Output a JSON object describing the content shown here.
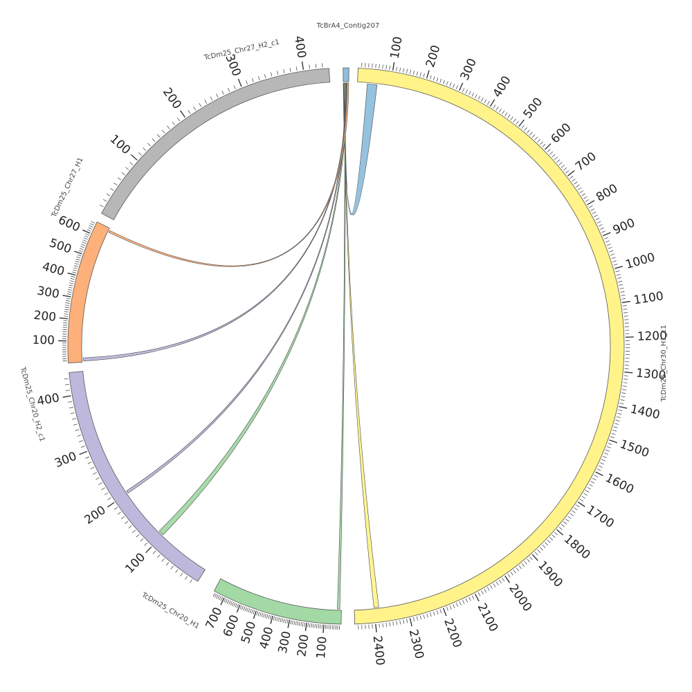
{
  "chart_data": {
    "type": "chord",
    "segments": [
      {
        "id": "contig207",
        "name": "TcBrA4_Contig207",
        "length": 10,
        "color": "#8fbfdc",
        "major_ticks": []
      },
      {
        "id": "chr30h1",
        "name": "TcDm25_Chr30_H1_c1",
        "length": 2460,
        "color": "#fff38a",
        "major_ticks": [
          100,
          200,
          300,
          400,
          500,
          600,
          700,
          800,
          900,
          1000,
          1100,
          1200,
          1300,
          1400,
          1500,
          1600,
          1700,
          1800,
          1900,
          2000,
          2100,
          2200,
          2300,
          2400
        ]
      },
      {
        "id": "chr20h1",
        "name": "TcDm25_Chr20_H1",
        "length": 770,
        "color": "#a3d9a5",
        "major_ticks": [
          100,
          200,
          300,
          400,
          500,
          600,
          700
        ]
      },
      {
        "id": "chr20h2",
        "name": "TcDm25_Chr20_H2_c1",
        "length": 440,
        "color": "#bdb8dc",
        "major_ticks": [
          100,
          200,
          300,
          400
        ]
      },
      {
        "id": "chr27h1",
        "name": "TcDm25_Chr27_H1",
        "length": 660,
        "color": "#fdb07a",
        "major_ticks": [
          100,
          200,
          300,
          400,
          500,
          600
        ]
      },
      {
        "id": "chr27h2",
        "name": "TcDm25_Chr27_H2_c1",
        "length": 440,
        "color": "#b7b7b7",
        "major_ticks": [
          100,
          200,
          300,
          400
        ]
      }
    ],
    "links": [
      {
        "from": {
          "seg": "contig207",
          "start": 0,
          "end": 3
        },
        "to": {
          "seg": "chr30h1",
          "start": 30,
          "end": 60
        },
        "color": "#8fbfdc"
      },
      {
        "from": {
          "seg": "contig207",
          "start": 1,
          "end": 2
        },
        "to": {
          "seg": "chr30h1",
          "start": 2385,
          "end": 2400
        },
        "color": "#fff38a"
      },
      {
        "from": {
          "seg": "contig207",
          "start": 2,
          "end": 4
        },
        "to": {
          "seg": "chr20h1",
          "start": 10,
          "end": 25
        },
        "color": "#a3d9a5"
      },
      {
        "from": {
          "seg": "contig207",
          "start": 4,
          "end": 6
        },
        "to": {
          "seg": "chr20h2",
          "start": 200,
          "end": 205
        },
        "color": "#bdb8dc"
      },
      {
        "from": {
          "seg": "contig207",
          "start": 5,
          "end": 7
        },
        "to": {
          "seg": "chr20h2",
          "start": 100,
          "end": 110
        },
        "color": "#a3d9a5"
      },
      {
        "from": {
          "seg": "contig207",
          "start": 6,
          "end": 8
        },
        "to": {
          "seg": "chr27h1",
          "start": 5,
          "end": 20
        },
        "color": "#bdb8dc"
      },
      {
        "from": {
          "seg": "contig207",
          "start": 7,
          "end": 10
        },
        "to": {
          "seg": "chr27h1",
          "start": 640,
          "end": 650
        },
        "color": "#fdb07a"
      }
    ]
  }
}
